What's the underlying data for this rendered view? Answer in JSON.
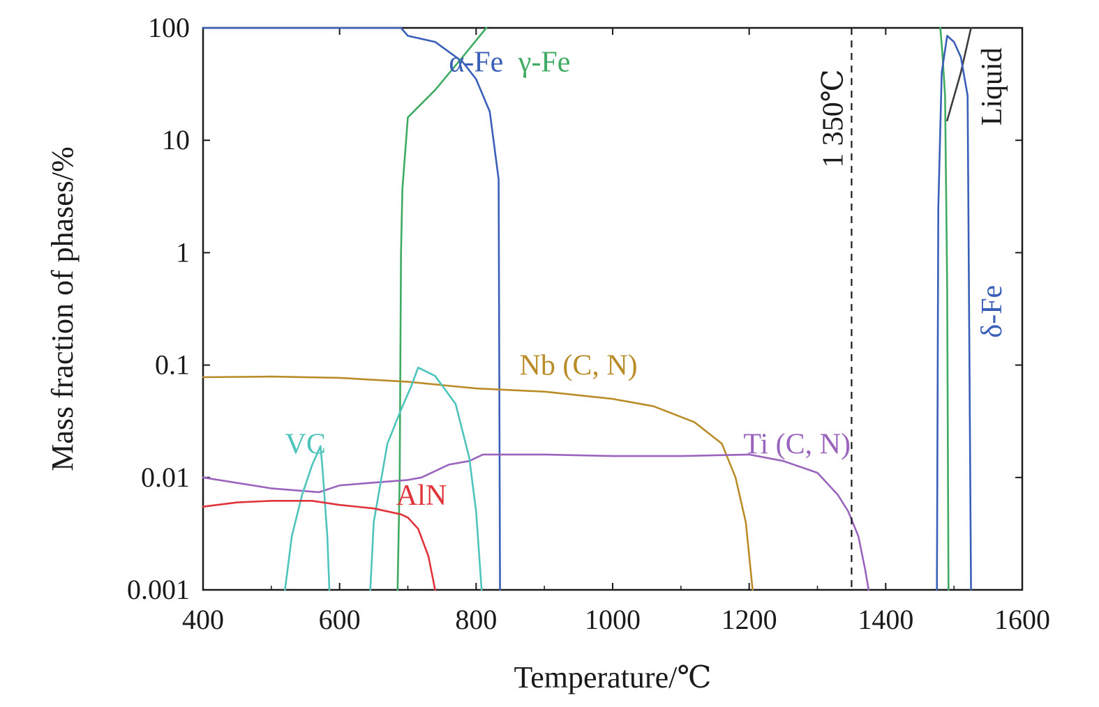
{
  "chart_data": {
    "type": "line",
    "x_axis": {
      "label": "Temperature/℃",
      "range": [
        400,
        1600
      ],
      "ticks": [
        400,
        600,
        800,
        1000,
        1200,
        1400,
        1600
      ],
      "tick_labels": [
        "400",
        "600",
        "800",
        "1000",
        "1200",
        "1400",
        "1600"
      ]
    },
    "y_axis": {
      "label": "Mass fraction of phases/%",
      "scale": "log",
      "range": [
        0.001,
        100
      ],
      "ticks": [
        0.001,
        0.01,
        0.1,
        1,
        10,
        100
      ],
      "tick_labels": [
        "0.001",
        "0.01",
        "0.1",
        "1",
        "10",
        "100"
      ]
    },
    "grid": false,
    "legend": "none",
    "series": [
      {
        "name": "α-Fe",
        "color": "#3a5fb8",
        "points": [
          [
            400,
            100
          ],
          [
            690,
            100
          ],
          [
            700,
            85
          ],
          [
            740,
            75
          ],
          [
            780,
            50
          ],
          [
            800,
            35
          ],
          [
            820,
            18
          ],
          [
            833,
            4.5
          ],
          [
            835,
            0.001
          ]
        ]
      },
      {
        "name": "γ-Fe",
        "color": "#3faa62",
        "points": [
          [
            685,
            0.001
          ],
          [
            688,
            0.01
          ],
          [
            690,
            1
          ],
          [
            692,
            3.7
          ],
          [
            700,
            16
          ],
          [
            740,
            28
          ],
          [
            780,
            55
          ],
          [
            815,
            100
          ]
        ]
      },
      {
        "name": "γ-Fe",
        "color": "#3faa62",
        "points": [
          [
            1480,
            100
          ],
          [
            1483,
            60
          ],
          [
            1487,
            25
          ],
          [
            1490,
            0.5
          ],
          [
            1492,
            0.001
          ]
        ]
      },
      {
        "name": "Liquid",
        "color": "#3c3c3c",
        "points": [
          [
            1490,
            15
          ],
          [
            1510,
            40
          ],
          [
            1525,
            100
          ]
        ]
      },
      {
        "name": "δ-Fe",
        "color": "#3a5fb8",
        "points": [
          [
            1475,
            0.001
          ],
          [
            1477,
            2.5
          ],
          [
            1482,
            40
          ],
          [
            1490,
            85
          ],
          [
            1500,
            75
          ],
          [
            1510,
            55
          ],
          [
            1520,
            25
          ],
          [
            1525,
            0.001
          ]
        ]
      },
      {
        "name": "Nb (C, N)",
        "color": "#b98c28",
        "points": [
          [
            400,
            0.078
          ],
          [
            500,
            0.079
          ],
          [
            600,
            0.077
          ],
          [
            700,
            0.071
          ],
          [
            800,
            0.062
          ],
          [
            900,
            0.058
          ],
          [
            1000,
            0.05
          ],
          [
            1060,
            0.043
          ],
          [
            1120,
            0.031
          ],
          [
            1160,
            0.02
          ],
          [
            1180,
            0.01
          ],
          [
            1195,
            0.004
          ],
          [
            1205,
            0.001
          ]
        ]
      },
      {
        "name": "Ti (C, N)",
        "color": "#9a64be",
        "points": [
          [
            400,
            0.01
          ],
          [
            500,
            0.008
          ],
          [
            570,
            0.0074
          ],
          [
            600,
            0.0085
          ],
          [
            650,
            0.009
          ],
          [
            700,
            0.0095
          ],
          [
            720,
            0.01
          ],
          [
            760,
            0.013
          ],
          [
            790,
            0.014
          ],
          [
            810,
            0.016
          ],
          [
            900,
            0.016
          ],
          [
            1000,
            0.0155
          ],
          [
            1100,
            0.0155
          ],
          [
            1200,
            0.016
          ],
          [
            1250,
            0.014
          ],
          [
            1300,
            0.011
          ],
          [
            1330,
            0.007
          ],
          [
            1345,
            0.005
          ],
          [
            1360,
            0.003
          ],
          [
            1370,
            0.0015
          ],
          [
            1375,
            0.001
          ]
        ]
      },
      {
        "name": "VC",
        "color": "#4ec4bc",
        "points": [
          [
            520,
            0.001
          ],
          [
            530,
            0.003
          ],
          [
            545,
            0.007
          ],
          [
            560,
            0.013
          ],
          [
            572,
            0.019
          ],
          [
            575,
            0.012
          ],
          [
            582,
            0.003
          ],
          [
            585,
            0.001
          ]
        ]
      },
      {
        "name": "VC",
        "color": "#4ec4bc",
        "points": [
          [
            645,
            0.001
          ],
          [
            650,
            0.004
          ],
          [
            670,
            0.02
          ],
          [
            690,
            0.04
          ],
          [
            705,
            0.065
          ],
          [
            715,
            0.095
          ],
          [
            740,
            0.08
          ],
          [
            770,
            0.045
          ],
          [
            790,
            0.015
          ],
          [
            800,
            0.005
          ],
          [
            808,
            0.001
          ]
        ]
      },
      {
        "name": "AlN",
        "color": "#e0343a",
        "points": [
          [
            400,
            0.0055
          ],
          [
            450,
            0.006
          ],
          [
            500,
            0.0062
          ],
          [
            560,
            0.0062
          ],
          [
            600,
            0.0057
          ],
          [
            650,
            0.0053
          ],
          [
            690,
            0.0047
          ],
          [
            700,
            0.0044
          ],
          [
            715,
            0.0035
          ],
          [
            730,
            0.002
          ],
          [
            740,
            0.001
          ]
        ]
      }
    ],
    "labels": [
      {
        "text": "α-Fe",
        "series": "α-Fe",
        "x": 800,
        "y": 50
      },
      {
        "text": "γ-Fe",
        "series": "γ-Fe",
        "x": 900,
        "y": 50
      },
      {
        "text": "Liquid",
        "series": "Liquid",
        "x": 1555,
        "y": 30
      },
      {
        "text": "δ-Fe",
        "series": "δ-Fe",
        "x": 1555,
        "y": 0.3
      },
      {
        "text": "Nb (C, N)",
        "series": "Nb (C, N)",
        "x": 950,
        "y": 0.1
      },
      {
        "text": "Ti (C, N)",
        "series": "Ti (C, N)",
        "x": 1270,
        "y": 0.02
      },
      {
        "text": "VC",
        "series": "VC",
        "x": 550,
        "y": 0.02
      },
      {
        "text": "AlN",
        "series": "AlN",
        "x": 720,
        "y": 0.007
      }
    ],
    "annotations": [
      {
        "type": "vline",
        "x": 1350,
        "style": "dashed",
        "color": "#1a1a1a",
        "text": "1 350℃"
      }
    ]
  }
}
